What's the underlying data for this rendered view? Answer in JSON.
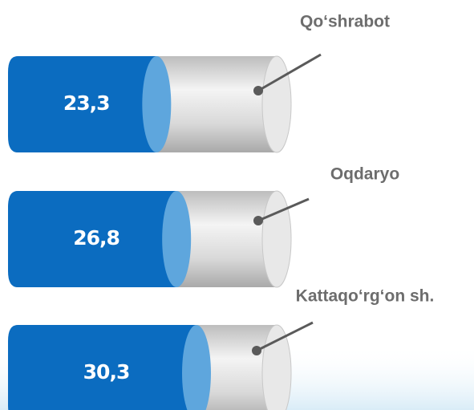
{
  "chart_data": {
    "type": "cylinder-bar",
    "categories": [
      "Qo‘shrabot",
      "Oqdaryo",
      "Kattaqo‘rg‘on sh."
    ],
    "values": [
      23.3,
      26.8,
      30.3
    ],
    "value_labels": [
      "23,3",
      "26,8",
      "30,3"
    ],
    "color": "#0b6cc0"
  }
}
